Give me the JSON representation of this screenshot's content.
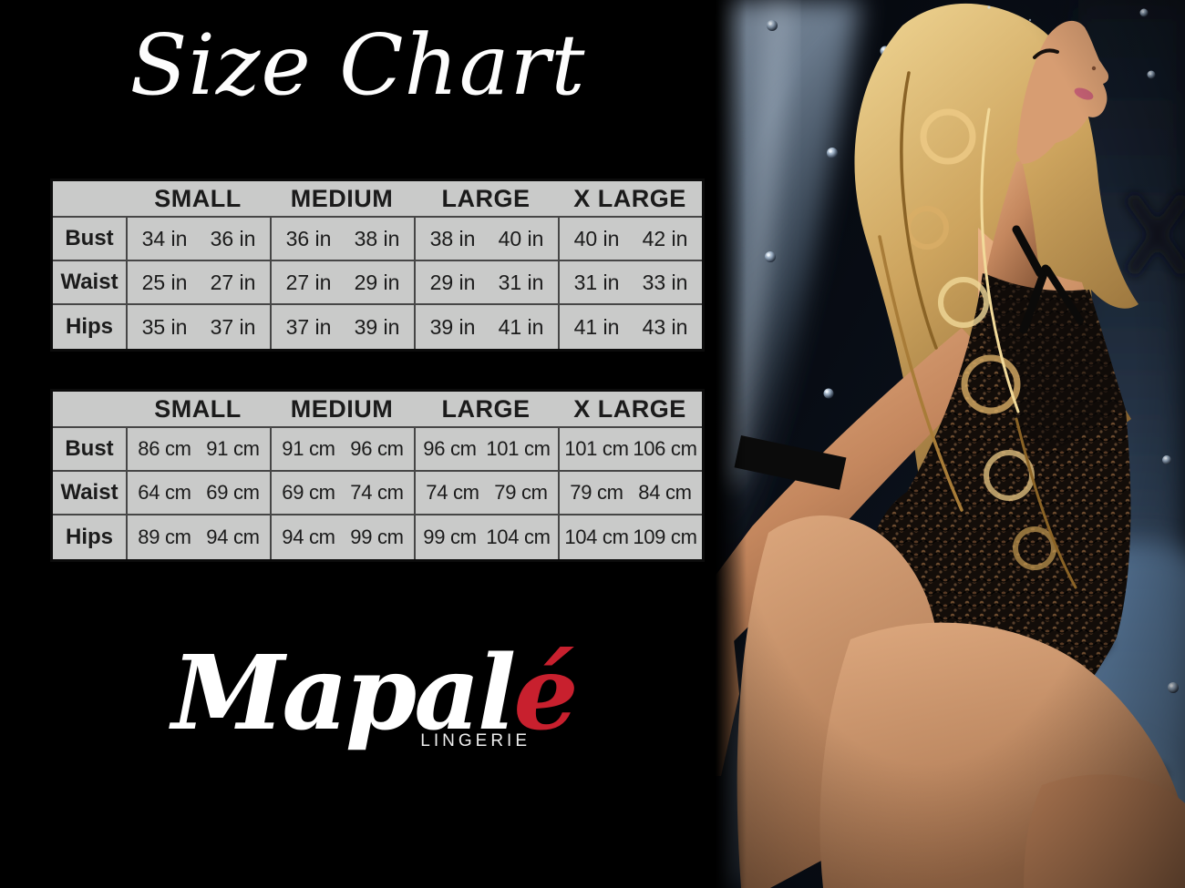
{
  "page": {
    "title": "Size Chart"
  },
  "brand": {
    "name_main": "Mapal",
    "name_accent": "é",
    "tagline": "LINGERIE",
    "accent_color": "#c8202e"
  },
  "size_chart": {
    "header_labels": [
      "SMALL",
      "MEDIUM",
      "LARGE",
      "X LARGE"
    ],
    "tables": [
      {
        "unit": "in",
        "rows": [
          {
            "label": "Bust",
            "cells": [
              [
                "34 in",
                "36 in"
              ],
              [
                "36 in",
                "38 in"
              ],
              [
                "38 in",
                "40 in"
              ],
              [
                "40 in",
                "42 in"
              ]
            ]
          },
          {
            "label": "Waist",
            "cells": [
              [
                "25 in",
                "27 in"
              ],
              [
                "27 in",
                "29 in"
              ],
              [
                "29 in",
                "31 in"
              ],
              [
                "31 in",
                "33 in"
              ]
            ]
          },
          {
            "label": "Hips",
            "cells": [
              [
                "35 in",
                "37 in"
              ],
              [
                "37 in",
                "39 in"
              ],
              [
                "39 in",
                "41 in"
              ],
              [
                "41 in",
                "43 in"
              ]
            ]
          }
        ]
      },
      {
        "unit": "cm",
        "rows": [
          {
            "label": "Bust",
            "cells": [
              [
                "86 cm",
                "91 cm"
              ],
              [
                "91 cm",
                "96 cm"
              ],
              [
                "96 cm",
                "101 cm"
              ],
              [
                "101 cm",
                "106 cm"
              ]
            ]
          },
          {
            "label": "Waist",
            "cells": [
              [
                "64 cm",
                "69 cm"
              ],
              [
                "69 cm",
                "74 cm"
              ],
              [
                "74 cm",
                "79 cm"
              ],
              [
                "79 cm",
                "84 cm"
              ]
            ]
          },
          {
            "label": "Hips",
            "cells": [
              [
                "89 cm",
                "94 cm"
              ],
              [
                "94 cm",
                "99 cm"
              ],
              [
                "99 cm",
                "104 cm"
              ],
              [
                "104 cm",
                "109 cm"
              ]
            ]
          }
        ]
      }
    ],
    "colors": {
      "cell_background": "#c9cac9",
      "grid_line": "#464646",
      "text": "#1b1b1b",
      "panel_background": "#000000"
    }
  }
}
